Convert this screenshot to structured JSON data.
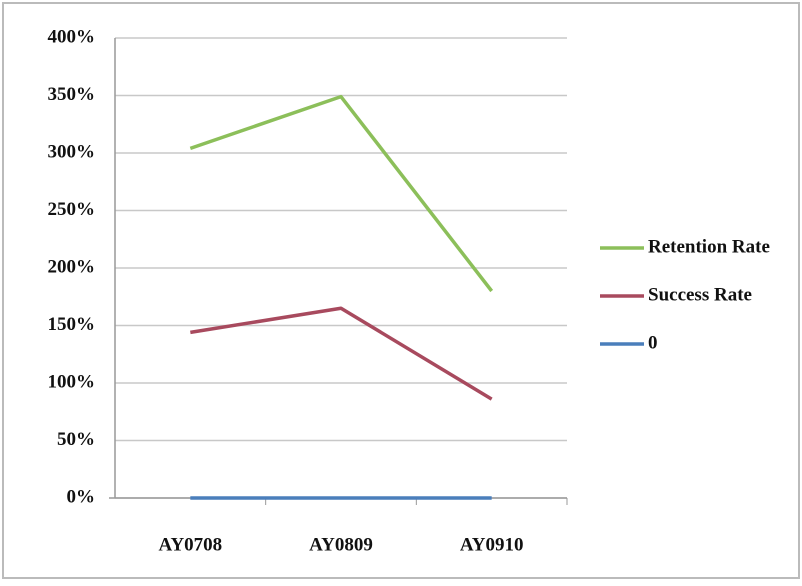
{
  "chart_data": {
    "type": "line",
    "categories": [
      "AY0708",
      "AY0809",
      "AY0910"
    ],
    "series": [
      {
        "name": "Retention Rate",
        "color": "#8cbf5a",
        "values": [
          304,
          349,
          180
        ]
      },
      {
        "name": "Success Rate",
        "color": "#a84a5e",
        "values": [
          144,
          165,
          86
        ]
      },
      {
        "name": "0",
        "color": "#4a7ebb",
        "values": [
          0,
          0,
          0
        ]
      }
    ],
    "ylim": [
      0,
      400
    ],
    "yticks": [
      {
        "value": 0,
        "label": "0%"
      },
      {
        "value": 50,
        "label": "50%"
      },
      {
        "value": 100,
        "label": "100%"
      },
      {
        "value": 150,
        "label": "150%"
      },
      {
        "value": 200,
        "label": "200%"
      },
      {
        "value": 250,
        "label": "250%"
      },
      {
        "value": 300,
        "label": "300%"
      },
      {
        "value": 350,
        "label": "350%"
      },
      {
        "value": 400,
        "label": "400%"
      }
    ],
    "grid": true,
    "legend": "right"
  }
}
